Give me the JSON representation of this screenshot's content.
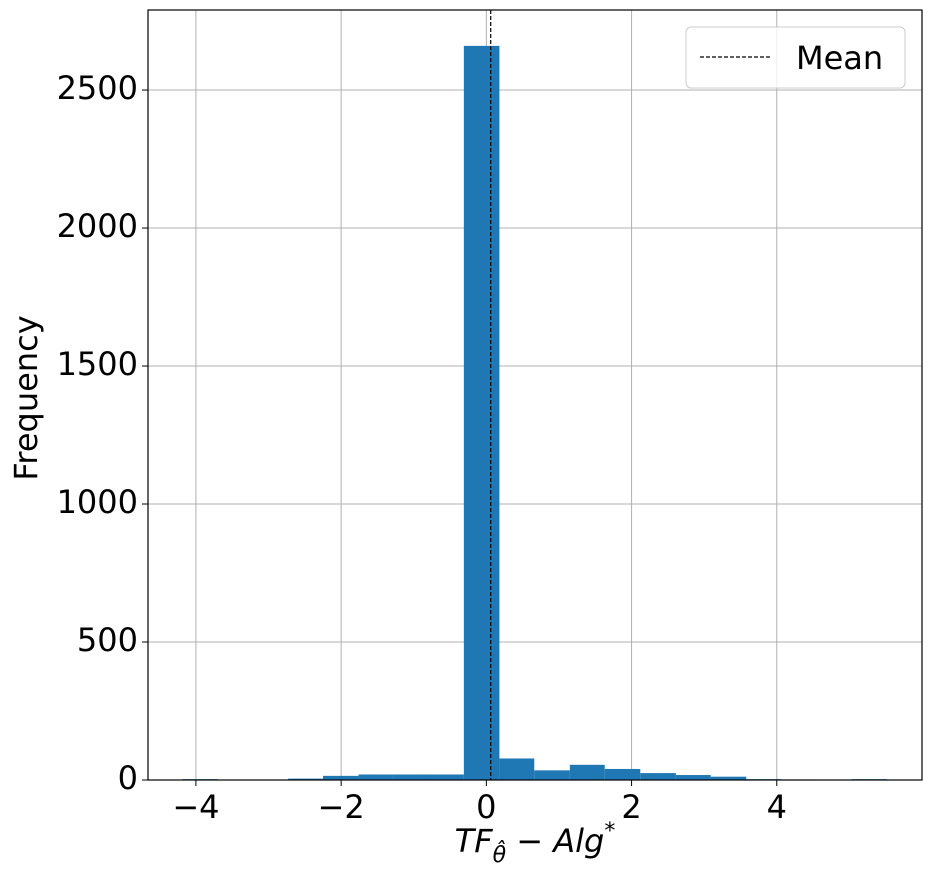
{
  "chart_data": {
    "type": "histogram",
    "bins": [
      -4.19,
      -3.7,
      -3.22,
      -2.73,
      -2.25,
      -1.76,
      -1.28,
      -0.79,
      -0.31,
      0.18,
      0.66,
      1.15,
      1.63,
      2.12,
      2.61,
      3.09,
      3.58,
      4.06,
      4.55,
      5.03,
      5.52
    ],
    "values": [
      3,
      0,
      0,
      5,
      15,
      20,
      20,
      20,
      2660,
      78,
      35,
      55,
      40,
      25,
      18,
      12,
      3,
      2,
      0,
      3
    ],
    "color": "#1f77b4",
    "mean": 0.06,
    "mean_name": "Mean",
    "xlabel": [
      "TF",
      "θ̂",
      " − Alg",
      "*"
    ],
    "ylabel": "Frequency",
    "xlim": [
      -4.66,
      6.0
    ],
    "ylim": [
      0,
      2790
    ],
    "xticks": [
      {
        "value": -4,
        "label": "−4"
      },
      {
        "value": -2,
        "label": "−2"
      },
      0,
      2,
      4
    ],
    "yticks": [
      0,
      500,
      1000,
      1500,
      2000,
      2500
    ],
    "grid": true,
    "legend": "upper right"
  }
}
